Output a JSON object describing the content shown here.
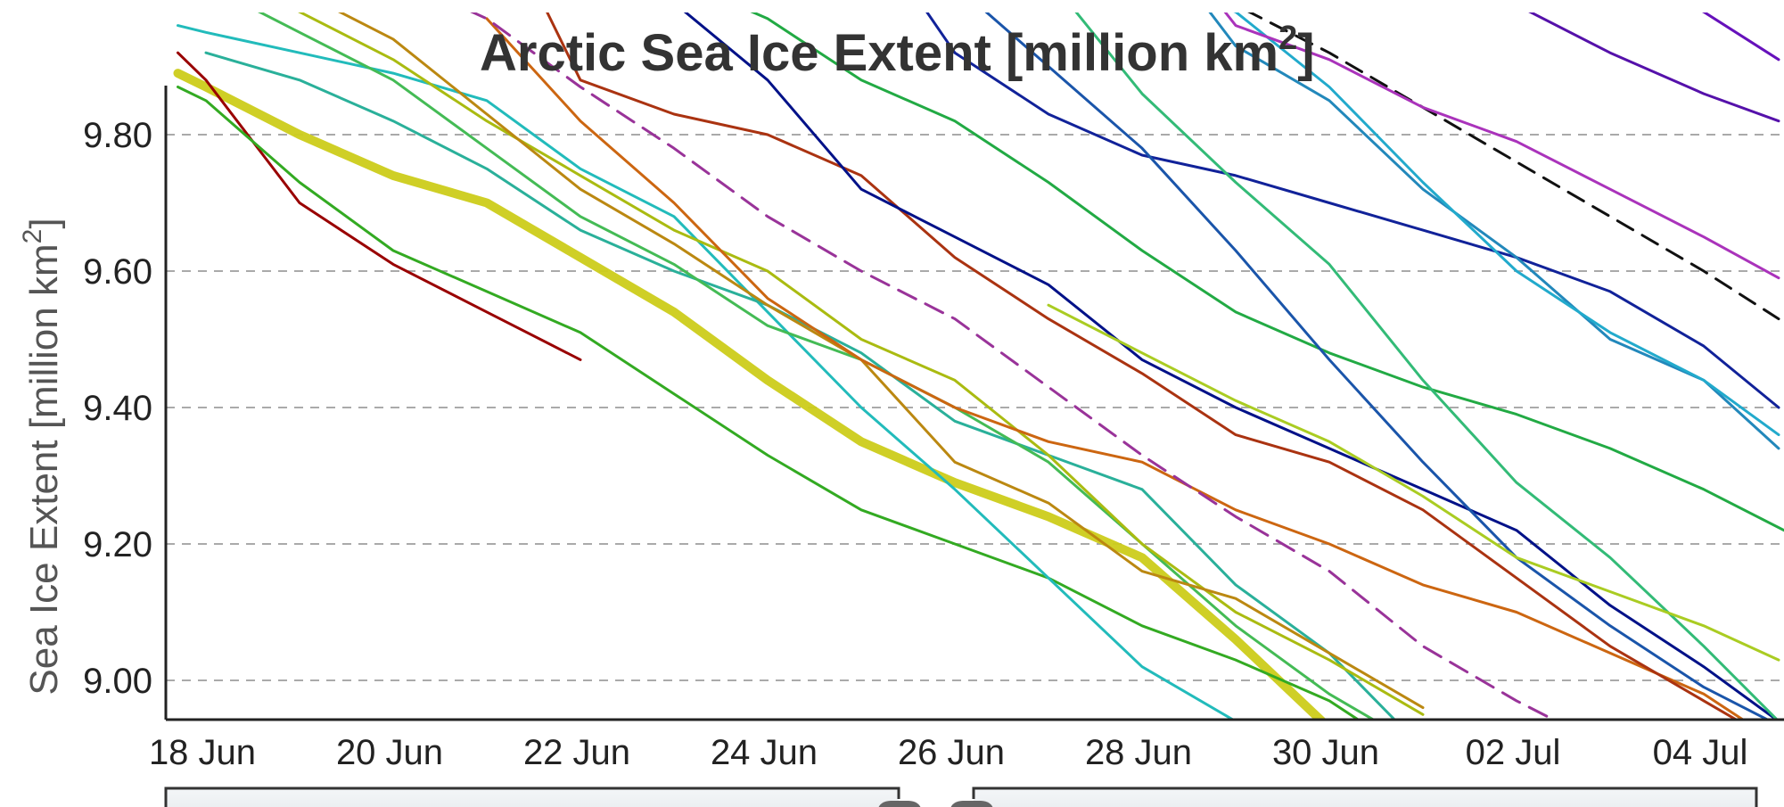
{
  "chart_data": {
    "type": "line",
    "title": "Arctic Sea Ice Extent [million km",
    "title_sup": "2",
    "title_close": "]",
    "ylabel": "Sea Ice Extent [million km",
    "ylabel_sup": "2",
    "ylabel_close": "]",
    "xlabel": "",
    "x_ticks": [
      "18 Jun",
      "20 Jun",
      "22 Jun",
      "24 Jun",
      "26 Jun",
      "28 Jun",
      "30 Jun",
      "02 Jul",
      "04 Jul"
    ],
    "y_ticks": [
      "9.00",
      "9.20",
      "9.40",
      "9.60",
      "9.80"
    ],
    "xlim": [
      18.0,
      34.8
    ],
    "ylim": [
      8.945,
      10.0
    ],
    "grid": "horizontal dashed",
    "x_unit": "day of June (32 = 02 Jul, 34 = 04 Jul)",
    "series": [
      {
        "color": "#cccc1a",
        "width": 10,
        "dash": "",
        "points": [
          [
            17.7,
            9.89
          ],
          [
            18,
            9.87
          ],
          [
            19,
            9.8
          ],
          [
            20,
            9.74
          ],
          [
            21,
            9.7
          ],
          [
            22,
            9.62
          ],
          [
            23,
            9.54
          ],
          [
            24,
            9.44
          ],
          [
            25,
            9.35
          ],
          [
            26,
            9.29
          ],
          [
            27,
            9.24
          ],
          [
            28,
            9.18
          ],
          [
            29,
            9.06
          ],
          [
            30,
            8.93
          ],
          [
            31,
            8.78
          ]
        ]
      },
      {
        "color": "#990000",
        "width": 3,
        "dash": "",
        "points": [
          [
            17.7,
            9.92
          ],
          [
            18,
            9.88
          ],
          [
            19,
            9.7
          ],
          [
            20,
            9.61
          ],
          [
            21,
            9.54
          ],
          [
            22,
            9.47
          ]
        ]
      },
      {
        "color": "#33aa22",
        "width": 3,
        "dash": "",
        "points": [
          [
            17.7,
            9.87
          ],
          [
            18,
            9.85
          ],
          [
            19,
            9.73
          ],
          [
            20,
            9.63
          ],
          [
            21,
            9.57
          ],
          [
            22,
            9.51
          ],
          [
            23,
            9.42
          ],
          [
            24,
            9.33
          ],
          [
            25,
            9.25
          ],
          [
            26,
            9.2
          ],
          [
            27,
            9.15
          ],
          [
            28,
            9.08
          ],
          [
            29,
            9.03
          ],
          [
            30,
            8.97
          ],
          [
            31,
            8.88
          ]
        ]
      },
      {
        "color": "#22bbbb",
        "width": 3,
        "dash": "",
        "points": [
          [
            17.7,
            9.96
          ],
          [
            18,
            9.95
          ],
          [
            19,
            9.92
          ],
          [
            20,
            9.89
          ],
          [
            21,
            9.85
          ],
          [
            22,
            9.75
          ],
          [
            23,
            9.68
          ],
          [
            24,
            9.54
          ],
          [
            25,
            9.4
          ],
          [
            26,
            9.28
          ],
          [
            27,
            9.15
          ],
          [
            28,
            9.02
          ],
          [
            29,
            8.94
          ],
          [
            30,
            8.88
          ]
        ]
      },
      {
        "color": "#2ab09a",
        "width": 3,
        "dash": "",
        "points": [
          [
            18,
            9.92
          ],
          [
            19,
            9.88
          ],
          [
            20,
            9.82
          ],
          [
            21,
            9.75
          ],
          [
            22,
            9.66
          ],
          [
            23,
            9.6
          ],
          [
            24,
            9.55
          ],
          [
            25,
            9.48
          ],
          [
            26,
            9.38
          ],
          [
            27,
            9.33
          ],
          [
            28,
            9.28
          ],
          [
            29,
            9.14
          ],
          [
            30,
            9.04
          ],
          [
            31,
            8.9
          ]
        ]
      },
      {
        "color": "#44bb55",
        "width": 3,
        "dash": "",
        "points": [
          [
            18,
            10.02
          ],
          [
            19,
            9.95
          ],
          [
            20,
            9.88
          ],
          [
            21,
            9.78
          ],
          [
            22,
            9.68
          ],
          [
            23,
            9.61
          ],
          [
            24,
            9.52
          ],
          [
            25,
            9.47
          ],
          [
            26,
            9.4
          ],
          [
            27,
            9.32
          ],
          [
            28,
            9.2
          ],
          [
            29,
            9.08
          ],
          [
            30,
            8.98
          ],
          [
            31,
            8.9
          ]
        ]
      },
      {
        "color": "#aabb11",
        "width": 3,
        "dash": "",
        "points": [
          [
            18,
            10.05
          ],
          [
            19,
            9.98
          ],
          [
            20,
            9.91
          ],
          [
            21,
            9.82
          ],
          [
            22,
            9.74
          ],
          [
            23,
            9.66
          ],
          [
            24,
            9.6
          ],
          [
            25,
            9.5
          ],
          [
            26,
            9.44
          ],
          [
            27,
            9.33
          ],
          [
            28,
            9.2
          ],
          [
            29,
            9.1
          ],
          [
            30,
            9.03
          ],
          [
            31,
            8.95
          ]
        ]
      },
      {
        "color": "#bb8811",
        "width": 3,
        "dash": "",
        "points": [
          [
            18,
            10.04
          ],
          [
            19,
            10.01
          ],
          [
            20,
            9.94
          ],
          [
            21,
            9.83
          ],
          [
            22,
            9.72
          ],
          [
            23,
            9.64
          ],
          [
            24,
            9.55
          ],
          [
            25,
            9.47
          ],
          [
            26,
            9.32
          ],
          [
            27,
            9.26
          ],
          [
            28,
            9.16
          ],
          [
            29,
            9.12
          ],
          [
            30,
            9.04
          ],
          [
            31,
            8.96
          ]
        ]
      },
      {
        "color": "#cc6611",
        "width": 3,
        "dash": "",
        "points": [
          [
            21,
            9.97
          ],
          [
            22,
            9.82
          ],
          [
            23,
            9.7
          ],
          [
            24,
            9.56
          ],
          [
            25,
            9.47
          ],
          [
            26,
            9.4
          ],
          [
            27,
            9.35
          ],
          [
            28,
            9.32
          ],
          [
            29,
            9.25
          ],
          [
            30,
            9.2
          ],
          [
            31,
            9.14
          ],
          [
            32,
            9.1
          ],
          [
            33,
            9.04
          ],
          [
            34,
            8.98
          ],
          [
            35,
            8.89
          ]
        ]
      },
      {
        "color": "#aa3311",
        "width": 3,
        "dash": "",
        "points": [
          [
            21.5,
            10.02
          ],
          [
            22,
            9.88
          ],
          [
            23,
            9.83
          ],
          [
            24,
            9.8
          ],
          [
            25,
            9.74
          ],
          [
            26,
            9.62
          ],
          [
            27,
            9.53
          ],
          [
            28,
            9.45
          ],
          [
            29,
            9.36
          ],
          [
            30,
            9.32
          ],
          [
            31,
            9.25
          ],
          [
            32,
            9.15
          ],
          [
            33,
            9.05
          ],
          [
            34,
            8.97
          ],
          [
            35,
            8.89
          ]
        ]
      },
      {
        "color": "#993399",
        "width": 3,
        "dash": "22,12",
        "points": [
          [
            20.2,
            10.02
          ],
          [
            21,
            9.97
          ],
          [
            22,
            9.87
          ],
          [
            23,
            9.78
          ],
          [
            24,
            9.68
          ],
          [
            25,
            9.6
          ],
          [
            26,
            9.53
          ],
          [
            27,
            9.43
          ],
          [
            28,
            9.33
          ],
          [
            29,
            9.24
          ],
          [
            30,
            9.16
          ],
          [
            31,
            9.05
          ],
          [
            32,
            8.97
          ],
          [
            33,
            8.9
          ],
          [
            34,
            8.84
          ]
        ]
      },
      {
        "color": "#22aa44",
        "width": 3,
        "dash": "",
        "points": [
          [
            23,
            10.03
          ],
          [
            24,
            9.97
          ],
          [
            25,
            9.88
          ],
          [
            26,
            9.82
          ],
          [
            27,
            9.73
          ],
          [
            28,
            9.63
          ],
          [
            29,
            9.54
          ],
          [
            30,
            9.48
          ],
          [
            31,
            9.43
          ],
          [
            32,
            9.39
          ],
          [
            33,
            9.34
          ],
          [
            34,
            9.28
          ],
          [
            35,
            9.21
          ]
        ]
      },
      {
        "color": "#001188",
        "width": 3,
        "dash": "",
        "points": [
          [
            22.5,
            10.05
          ],
          [
            24,
            9.88
          ],
          [
            25,
            9.72
          ],
          [
            26,
            9.65
          ],
          [
            27,
            9.58
          ],
          [
            28,
            9.47
          ],
          [
            29,
            9.4
          ],
          [
            30,
            9.34
          ],
          [
            31,
            9.28
          ],
          [
            32,
            9.22
          ],
          [
            33,
            9.11
          ],
          [
            34,
            9.02
          ],
          [
            35,
            8.92
          ]
        ]
      },
      {
        "color": "#112299",
        "width": 3,
        "dash": "",
        "points": [
          [
            25.5,
            10.02
          ],
          [
            26,
            9.92
          ],
          [
            27,
            9.83
          ],
          [
            28,
            9.77
          ],
          [
            29,
            9.74
          ],
          [
            30,
            9.7
          ],
          [
            31,
            9.66
          ],
          [
            32,
            9.62
          ],
          [
            33,
            9.57
          ],
          [
            34,
            9.49
          ],
          [
            34.8,
            9.4
          ]
        ]
      },
      {
        "color": "#1a55aa",
        "width": 3,
        "dash": "",
        "points": [
          [
            26,
            10.02
          ],
          [
            27,
            9.9
          ],
          [
            28,
            9.78
          ],
          [
            29,
            9.63
          ],
          [
            30,
            9.47
          ],
          [
            31,
            9.32
          ],
          [
            32,
            9.18
          ],
          [
            33,
            9.08
          ],
          [
            34,
            8.99
          ],
          [
            35,
            8.92
          ]
        ]
      },
      {
        "color": "#2288bb",
        "width": 3,
        "dash": "",
        "points": [
          [
            28.5,
            10.02
          ],
          [
            29,
            9.93
          ],
          [
            30,
            9.85
          ],
          [
            31,
            9.72
          ],
          [
            32,
            9.62
          ],
          [
            33,
            9.5
          ],
          [
            34,
            9.44
          ],
          [
            34.8,
            9.34
          ]
        ]
      },
      {
        "color": "#22aacc",
        "width": 3,
        "dash": "",
        "points": [
          [
            27.5,
            10.05
          ],
          [
            29,
            9.98
          ],
          [
            30,
            9.87
          ],
          [
            31,
            9.73
          ],
          [
            32,
            9.6
          ],
          [
            33,
            9.51
          ],
          [
            34,
            9.44
          ],
          [
            34.8,
            9.36
          ]
        ]
      },
      {
        "color": "#33bb77",
        "width": 3,
        "dash": "",
        "points": [
          [
            27,
            10.03
          ],
          [
            28,
            9.86
          ],
          [
            29,
            9.73
          ],
          [
            30,
            9.61
          ],
          [
            31,
            9.44
          ],
          [
            32,
            9.29
          ],
          [
            33,
            9.18
          ],
          [
            34,
            9.05
          ],
          [
            34.8,
            8.94
          ]
        ]
      },
      {
        "color": "#aacc22",
        "width": 3,
        "dash": "",
        "points": [
          [
            27,
            9.55
          ],
          [
            28,
            9.48
          ],
          [
            29,
            9.41
          ],
          [
            30,
            9.35
          ],
          [
            31,
            9.27
          ],
          [
            32,
            9.18
          ],
          [
            33,
            9.13
          ],
          [
            34,
            9.08
          ],
          [
            34.8,
            9.03
          ]
        ]
      },
      {
        "color": "#111111",
        "width": 3,
        "dash": "20,12",
        "points": [
          [
            28.6,
            10.03
          ],
          [
            29,
            9.99
          ],
          [
            30,
            9.92
          ],
          [
            31,
            9.84
          ],
          [
            32,
            9.76
          ],
          [
            33,
            9.68
          ],
          [
            34,
            9.6
          ],
          [
            34.8,
            9.53
          ]
        ]
      },
      {
        "color": "#aa33bb",
        "width": 3,
        "dash": "",
        "points": [
          [
            28.6,
            10.03
          ],
          [
            29,
            9.96
          ],
          [
            30,
            9.91
          ],
          [
            31,
            9.84
          ],
          [
            32,
            9.79
          ],
          [
            33,
            9.72
          ],
          [
            34,
            9.65
          ],
          [
            34.8,
            9.59
          ]
        ]
      },
      {
        "color": "#5511aa",
        "width": 3,
        "dash": "",
        "points": [
          [
            31.5,
            10.03
          ],
          [
            32,
            9.99
          ],
          [
            33,
            9.92
          ],
          [
            34,
            9.86
          ],
          [
            34.8,
            9.82
          ]
        ]
      },
      {
        "color": "#6611bb",
        "width": 3,
        "dash": "",
        "points": [
          [
            33.5,
            10.01
          ],
          [
            34,
            9.98
          ],
          [
            34.8,
            9.91
          ]
        ]
      }
    ]
  }
}
